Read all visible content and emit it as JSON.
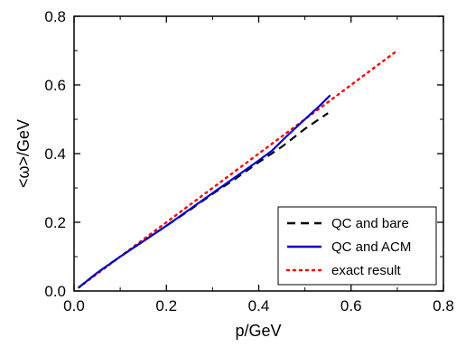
{
  "chart_data": {
    "type": "line",
    "xlabel": "p/GeV",
    "ylabel": "<ω>/GeV",
    "xlim": [
      0.0,
      0.8
    ],
    "ylim": [
      0.0,
      0.8
    ],
    "x_ticks": [
      0.0,
      0.2,
      0.4,
      0.6,
      0.8
    ],
    "y_ticks": [
      0.0,
      0.2,
      0.4,
      0.6,
      0.8
    ],
    "x_tick_labels": [
      "0.0",
      "0.2",
      "0.4",
      "0.6",
      "0.8"
    ],
    "y_tick_labels": [
      "0.0",
      "0.2",
      "0.4",
      "0.6",
      "0.8"
    ],
    "grid": false,
    "legend_position": "bottom-right",
    "series": [
      {
        "name": "QC and bare",
        "color": "#000000",
        "style": "dashed",
        "x": [
          0.01,
          0.05,
          0.1,
          0.15,
          0.2,
          0.25,
          0.3,
          0.35,
          0.4,
          0.45,
          0.5,
          0.55
        ],
        "y": [
          0.01,
          0.053,
          0.1,
          0.145,
          0.19,
          0.235,
          0.283,
          0.327,
          0.375,
          0.42,
          0.472,
          0.518
        ]
      },
      {
        "name": "QC and ACM",
        "color": "#0000cc",
        "style": "solid",
        "x": [
          0.01,
          0.05,
          0.1,
          0.15,
          0.2,
          0.25,
          0.3,
          0.35,
          0.4,
          0.43,
          0.46,
          0.5,
          0.53,
          0.555
        ],
        "y": [
          0.01,
          0.053,
          0.1,
          0.145,
          0.19,
          0.237,
          0.285,
          0.332,
          0.38,
          0.41,
          0.45,
          0.5,
          0.537,
          0.57
        ]
      },
      {
        "name": "exact result",
        "color": "#ff0000",
        "style": "dotted",
        "x": [
          0.01,
          0.1,
          0.2,
          0.3,
          0.4,
          0.5,
          0.55,
          0.6,
          0.65,
          0.7
        ],
        "y": [
          0.01,
          0.1,
          0.2,
          0.3,
          0.4,
          0.5,
          0.55,
          0.6,
          0.65,
          0.7
        ]
      }
    ]
  }
}
